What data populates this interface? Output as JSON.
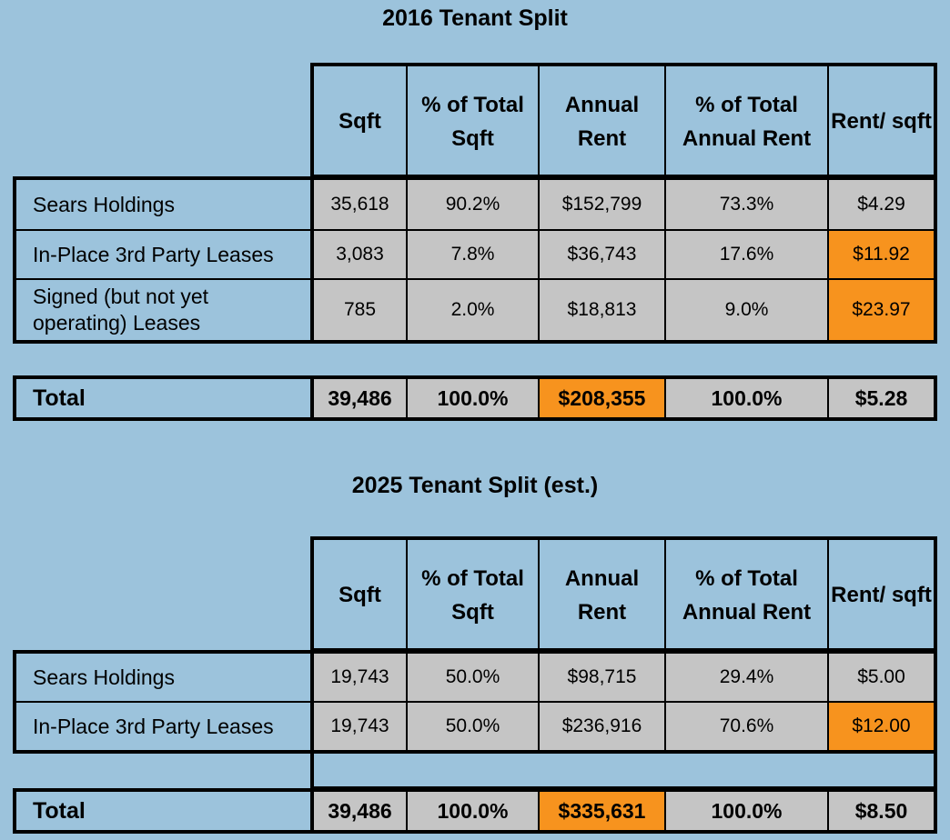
{
  "table2016": {
    "title": "2016 Tenant Split",
    "headers": {
      "sqft": "Sqft",
      "pct_sqft": "% of Total Sqft",
      "rent": "Annual Rent",
      "pct_rent": "% of Total Annual Rent",
      "rent_sqft": "Rent/ sqft"
    },
    "rows": [
      {
        "label": "Sears Holdings",
        "sqft": "35,618",
        "pct_sqft": "90.2%",
        "rent": "$152,799",
        "pct_rent": "73.3%",
        "rent_sqft": "$4.29"
      },
      {
        "label": "In-Place 3rd Party Leases",
        "sqft": "3,083",
        "pct_sqft": "7.8%",
        "rent": "$36,743",
        "pct_rent": "17.6%",
        "rent_sqft": "$11.92"
      },
      {
        "label": "Signed (but not yet operating) Leases",
        "sqft": "785",
        "pct_sqft": "2.0%",
        "rent": "$18,813",
        "pct_rent": "9.0%",
        "rent_sqft": "$23.97"
      }
    ],
    "total": {
      "label": "Total",
      "sqft": "39,486",
      "pct_sqft": "100.0%",
      "rent": "$208,355",
      "pct_rent": "100.0%",
      "rent_sqft": "$5.28"
    }
  },
  "table2025": {
    "title": "2025 Tenant Split (est.)",
    "headers": {
      "sqft": "Sqft",
      "pct_sqft": "% of Total Sqft",
      "rent": "Annual Rent",
      "pct_rent": "% of Total Annual Rent",
      "rent_sqft": "Rent/ sqft"
    },
    "rows": [
      {
        "label": "Sears Holdings",
        "sqft": "19,743",
        "pct_sqft": "50.0%",
        "rent": "$98,715",
        "pct_rent": "29.4%",
        "rent_sqft": "$5.00"
      },
      {
        "label": "In-Place 3rd Party Leases",
        "sqft": "19,743",
        "pct_sqft": "50.0%",
        "rent": "$236,916",
        "pct_rent": "70.6%",
        "rent_sqft": "$12.00"
      }
    ],
    "total": {
      "label": "Total",
      "sqft": "39,486",
      "pct_sqft": "100.0%",
      "rent": "$335,631",
      "pct_rent": "100.0%",
      "rent_sqft": "$8.50"
    }
  },
  "colors": {
    "background": "#9cc3dc",
    "cell": "#c5c5c5",
    "highlight": "#f7931e"
  }
}
